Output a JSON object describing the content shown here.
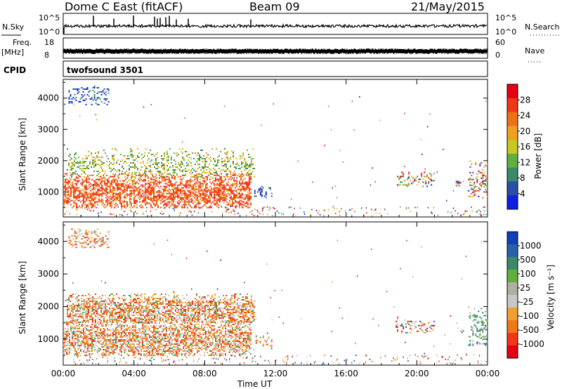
{
  "header": {
    "station": "Dome C East (fitACF)",
    "beam": "Beam 09",
    "date": "21/May/2015"
  },
  "panel_labels": {
    "nsky": "N.Sky",
    "nsearch": "N.Search",
    "freq_top": "Freq.",
    "freq_unit": "[MHz]",
    "nave": "Nave",
    "cpid": "CPID",
    "cpid_value": "twofsound 3501",
    "nsky_ticks": [
      "10^5",
      "10^0"
    ],
    "nsearch_ticks": [
      "10^5",
      "10^0"
    ],
    "freq_ticks": [
      "18",
      "8"
    ],
    "nave_ticks": [
      "60",
      "0"
    ]
  },
  "colors": {
    "power": [
      "#1020e0",
      "#2a4fa8",
      "#3a8a6a",
      "#60b040",
      "#c8c820",
      "#f0a020",
      "#f07018",
      "#f03818",
      "#e80010"
    ],
    "velocity": [
      "#e80010",
      "#f03818",
      "#f07818",
      "#f0a030",
      "#c8c8c8",
      "#b0b0a0",
      "#60b040",
      "#3a8a6a",
      "#2a60a8",
      "#1040b8"
    ]
  },
  "chart_data": [
    {
      "type": "heatmap",
      "name": "power",
      "ylabel": "Slant Range [km]",
      "ylim": [
        200,
        4600
      ],
      "y_ticks": [
        1000,
        2000,
        3000,
        4000
      ],
      "x_ticks": [
        "00:00",
        "04:00",
        "08:00",
        "12:00",
        "16:00",
        "20:00",
        "00:00"
      ],
      "xlim_hours": [
        0,
        24
      ],
      "colorbar": {
        "label": "Power [dB]",
        "ticks": [
          "28",
          "24",
          "20",
          "16",
          "12",
          "8",
          "4"
        ],
        "range": [
          0,
          30
        ]
      },
      "scatter_regions": [
        {
          "t_start": 0.0,
          "t_end": 10.6,
          "range_low": 500,
          "range_high": 1600,
          "level": "high"
        },
        {
          "t_start": 0.2,
          "t_end": 10.8,
          "range_low": 1500,
          "range_high": 2400,
          "level": "mid"
        },
        {
          "t_start": 10.8,
          "t_end": 11.8,
          "range_low": 800,
          "range_high": 1200,
          "level": "low"
        },
        {
          "t_start": 18.8,
          "t_end": 21.0,
          "range_low": 1200,
          "range_high": 1650,
          "level": "mixed"
        },
        {
          "t_start": 22.2,
          "t_end": 22.6,
          "range_low": 1200,
          "range_high": 1400,
          "level": "mixed"
        },
        {
          "t_start": 22.9,
          "t_end": 24.0,
          "range_low": 800,
          "range_high": 2000,
          "level": "mixed"
        },
        {
          "t_start": 0.3,
          "t_end": 2.6,
          "range_low": 3800,
          "range_high": 4400,
          "level": "low"
        }
      ]
    },
    {
      "type": "heatmap",
      "name": "velocity",
      "ylabel": "Slant Range [km]",
      "ylim": [
        200,
        4600
      ],
      "y_ticks": [
        1000,
        2000,
        3000,
        4000
      ],
      "x_ticks": [
        "00:00",
        "04:00",
        "08:00",
        "12:00",
        "16:00",
        "20:00",
        "00:00"
      ],
      "xlabel": "Time UT",
      "xlim_hours": [
        0,
        24
      ],
      "colorbar": {
        "label": "Velocity [m s⁻¹]",
        "ticks": [
          "1000",
          "500",
          "100",
          "25",
          "-25",
          "-100",
          "-500",
          "-1000"
        ]
      },
      "scatter_regions": [
        {
          "t_start": 0.0,
          "t_end": 10.6,
          "range_low": 500,
          "range_high": 1600,
          "level": "negative"
        },
        {
          "t_start": 0.2,
          "t_end": 10.8,
          "range_low": 1500,
          "range_high": 2400,
          "level": "negative"
        },
        {
          "t_start": 10.8,
          "t_end": 11.8,
          "range_low": 800,
          "range_high": 1200,
          "level": "negative"
        },
        {
          "t_start": 18.8,
          "t_end": 21.0,
          "range_low": 1200,
          "range_high": 1650,
          "level": "mixed"
        },
        {
          "t_start": 22.2,
          "t_end": 22.6,
          "range_low": 1200,
          "range_high": 1400,
          "level": "mixed"
        },
        {
          "t_start": 22.9,
          "t_end": 24.0,
          "range_low": 800,
          "range_high": 2000,
          "level": "positive"
        },
        {
          "t_start": 0.3,
          "t_end": 2.6,
          "range_low": 3800,
          "range_high": 4400,
          "level": "negative"
        }
      ]
    }
  ]
}
